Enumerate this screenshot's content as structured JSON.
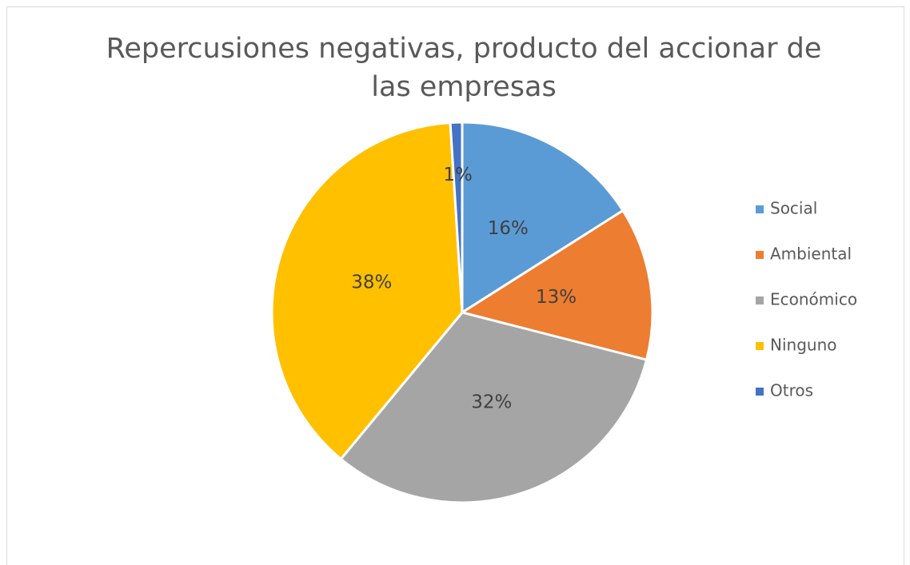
{
  "chart_data": {
    "type": "pie",
    "title": "Repercusiones negativas, producto del accionar de las empresas",
    "categories": [
      "Social",
      "Ambiental",
      "Económico",
      "Ninguno",
      "Otros"
    ],
    "values": [
      16,
      13,
      32,
      38,
      1
    ],
    "value_labels": [
      "16%",
      "13%",
      "32%",
      "38%",
      "1%"
    ],
    "colors": [
      "#5b9bd5",
      "#ed7d31",
      "#a5a5a5",
      "#ffc000",
      "#4472c4"
    ],
    "legend": "right"
  }
}
